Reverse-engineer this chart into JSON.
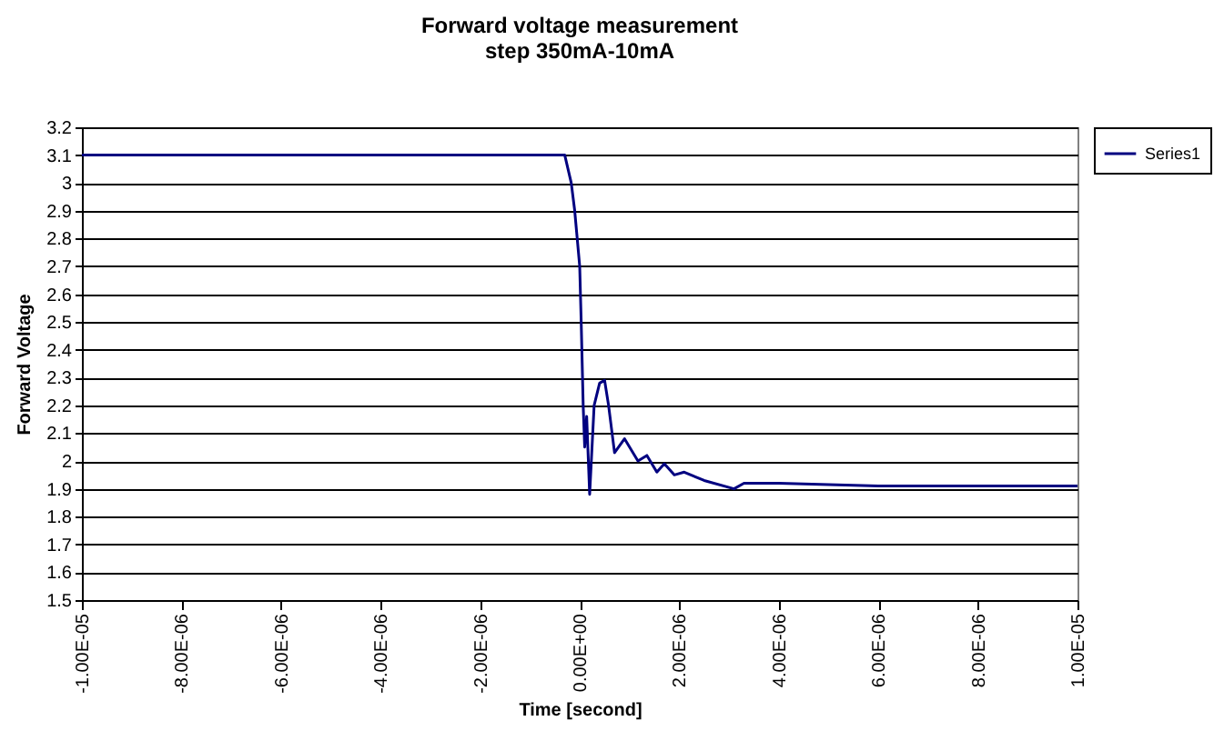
{
  "chart_data": {
    "type": "line",
    "title": "Forward voltage measurement",
    "subtitle": "step 350mA-10mA",
    "xlabel": "Time [second]",
    "ylabel": "Forward Voltage",
    "x": [
      -1e-05,
      -8e-06,
      -6e-06,
      -4e-06,
      -2e-06,
      -1e-06,
      -3e-07,
      -1.7e-07,
      -1e-07,
      0,
      3e-08,
      7e-08,
      1e-07,
      1.4e-07,
      2e-07,
      2.9e-07,
      4e-07,
      5e-07,
      5.8e-07,
      7e-07,
      9e-07,
      1.17e-06,
      1.35e-06,
      1.55e-06,
      1.7e-06,
      1.9e-06,
      2.1e-06,
      2.5e-06,
      3.1e-06,
      3.3e-06,
      4e-06,
      6e-06,
      8e-06,
      1e-05
    ],
    "series": [
      {
        "name": "Series1",
        "color": "#000080",
        "values": [
          3.1,
          3.1,
          3.1,
          3.1,
          3.1,
          3.1,
          3.1,
          3.0,
          2.9,
          2.7,
          2.5,
          2.2,
          2.05,
          2.16,
          1.88,
          2.2,
          2.28,
          2.29,
          2.2,
          2.03,
          2.08,
          2.0,
          2.02,
          1.96,
          1.99,
          1.95,
          1.96,
          1.93,
          1.9,
          1.92,
          1.92,
          1.91,
          1.91,
          1.91
        ]
      }
    ],
    "xlim": [
      -1e-05,
      1e-05
    ],
    "xticks": [
      {
        "value": -1e-05,
        "label": "-1.00E-05"
      },
      {
        "value": -8e-06,
        "label": "-8.00E-06"
      },
      {
        "value": -6e-06,
        "label": "-6.00E-06"
      },
      {
        "value": -4e-06,
        "label": "-4.00E-06"
      },
      {
        "value": -2e-06,
        "label": "-2.00E-06"
      },
      {
        "value": 0,
        "label": "0.00E+00"
      },
      {
        "value": 2e-06,
        "label": "2.00E-06"
      },
      {
        "value": 4e-06,
        "label": "4.00E-06"
      },
      {
        "value": 6e-06,
        "label": "6.00E-06"
      },
      {
        "value": 8e-06,
        "label": "8.00E-06"
      },
      {
        "value": 1e-05,
        "label": "1.00E-05"
      }
    ],
    "ylim": [
      1.5,
      3.2
    ],
    "yticks": [
      1.5,
      1.6,
      1.7,
      1.8,
      1.9,
      2,
      2.1,
      2.2,
      2.3,
      2.4,
      2.5,
      2.6,
      2.7,
      2.8,
      2.9,
      3,
      3.1,
      3.2
    ],
    "grid": "y",
    "legend": "right",
    "marker": "none",
    "line_style": "solid"
  }
}
